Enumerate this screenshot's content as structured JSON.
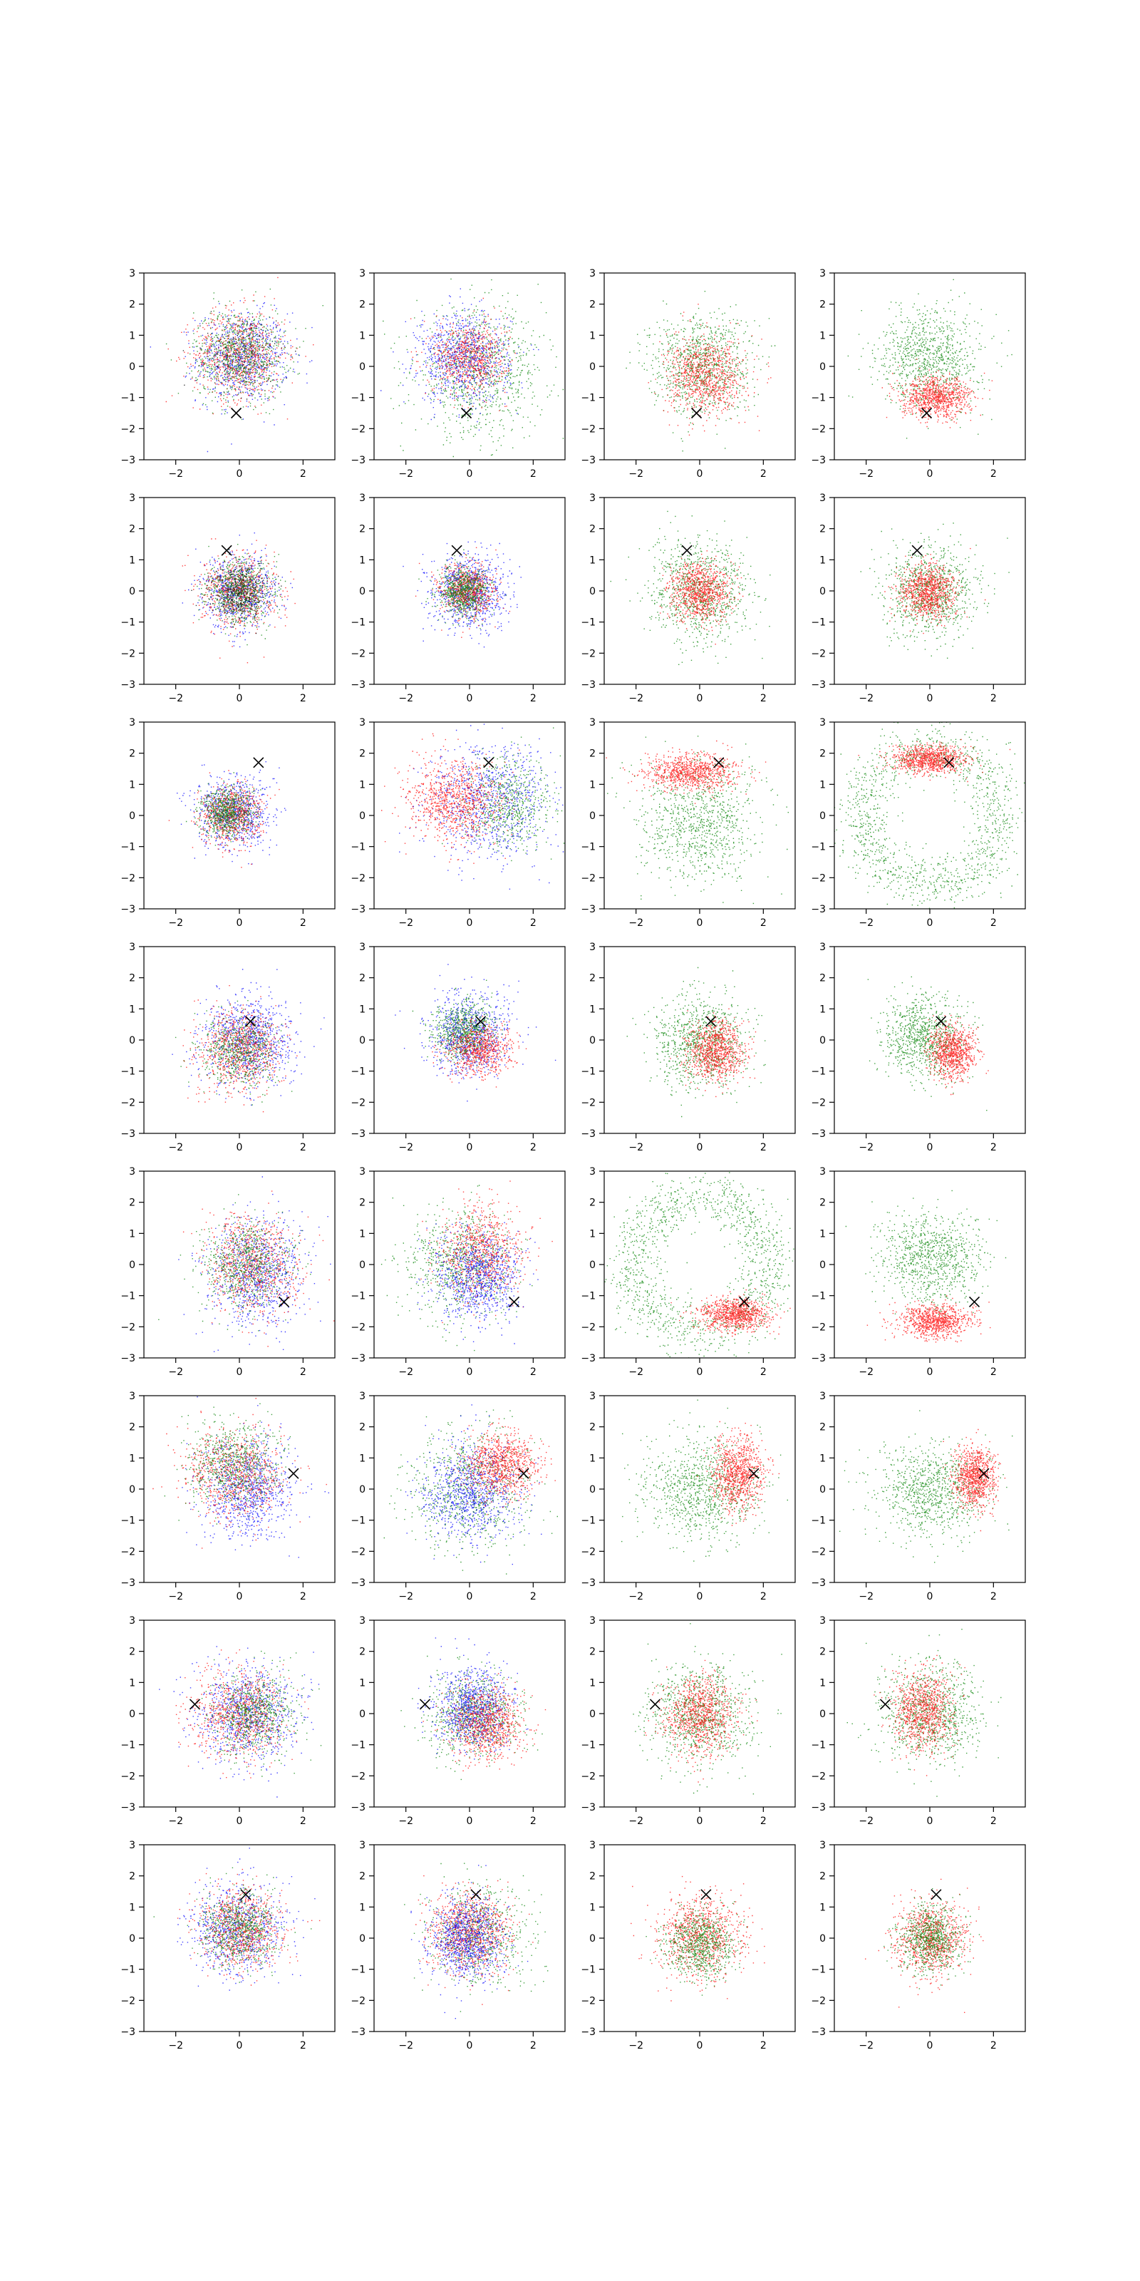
{
  "chart_data": {
    "type": "scatter",
    "rows": 8,
    "cols": 4,
    "xlim": [
      -3,
      3
    ],
    "ylim": [
      -3,
      3
    ],
    "xticks": [
      -2,
      0,
      2
    ],
    "yticks": [
      -3,
      -2,
      -1,
      0,
      1,
      2,
      3
    ],
    "grid": false,
    "legend": "none",
    "colors": {
      "red": "#ff0000",
      "green": "#008000",
      "blue": "#0000ff",
      "marker": "#000000",
      "axes": "#000000"
    },
    "marker_symbol": "x",
    "markers": [
      {
        "x": -0.1,
        "y": -1.5
      },
      {
        "x": -0.4,
        "y": 1.3
      },
      {
        "x": 0.6,
        "y": 1.7
      },
      {
        "x": 0.35,
        "y": 0.6
      },
      {
        "x": 1.4,
        "y": -1.2
      },
      {
        "x": 1.7,
        "y": 0.5
      },
      {
        "x": -1.4,
        "y": 0.3
      },
      {
        "x": 0.2,
        "y": 1.4
      }
    ],
    "panels": [
      {
        "row": 0,
        "col": 0,
        "clouds": [
          {
            "color": "blue",
            "cx": 0.1,
            "cy": 0.3,
            "rx": 1.0,
            "ry": 1.0,
            "n": 800
          },
          {
            "color": "red",
            "cx": 0.0,
            "cy": 0.4,
            "rx": 1.0,
            "ry": 1.0,
            "n": 800
          },
          {
            "color": "green",
            "cx": 0.0,
            "cy": 0.4,
            "rx": 1.0,
            "ry": 1.0,
            "n": 800
          },
          {
            "color": "black",
            "cx": 0.0,
            "cy": 0.4,
            "rx": 0.8,
            "ry": 0.8,
            "n": 120
          }
        ]
      },
      {
        "row": 0,
        "col": 1,
        "clouds": [
          {
            "color": "green",
            "cx": 0.3,
            "cy": -0.2,
            "rx": 1.4,
            "ry": 1.4,
            "n": 900
          },
          {
            "color": "blue",
            "cx": -0.2,
            "cy": 0.3,
            "rx": 1.0,
            "ry": 1.0,
            "n": 900
          },
          {
            "color": "red",
            "cx": 0.0,
            "cy": 0.3,
            "rx": 0.8,
            "ry": 0.8,
            "n": 700
          }
        ]
      },
      {
        "row": 0,
        "col": 2,
        "clouds": [
          {
            "color": "green",
            "cx": 0.0,
            "cy": 0.1,
            "rx": 1.1,
            "ry": 1.1,
            "n": 900
          },
          {
            "color": "red",
            "cx": 0.2,
            "cy": -0.3,
            "rx": 0.85,
            "ry": 0.85,
            "n": 900
          }
        ]
      },
      {
        "row": 0,
        "col": 3,
        "clouds": [
          {
            "color": "green",
            "cx": 0.0,
            "cy": 0.3,
            "rx": 1.1,
            "ry": 1.1,
            "n": 900
          },
          {
            "color": "red",
            "cx": 0.2,
            "cy": -1.0,
            "rx": 0.75,
            "ry": 0.45,
            "n": 900
          }
        ]
      },
      {
        "row": 1,
        "col": 0,
        "clouds": [
          {
            "color": "blue",
            "cx": 0.0,
            "cy": 0.0,
            "rx": 0.8,
            "ry": 0.8,
            "n": 700
          },
          {
            "color": "red",
            "cx": 0.0,
            "cy": 0.0,
            "rx": 0.8,
            "ry": 0.8,
            "n": 700
          },
          {
            "color": "green",
            "cx": 0.0,
            "cy": 0.0,
            "rx": 0.7,
            "ry": 0.7,
            "n": 700
          },
          {
            "color": "black",
            "cx": 0.0,
            "cy": 0.0,
            "rx": 0.6,
            "ry": 0.6,
            "n": 300
          }
        ]
      },
      {
        "row": 1,
        "col": 1,
        "clouds": [
          {
            "color": "blue",
            "cx": 0.0,
            "cy": 0.0,
            "rx": 0.8,
            "ry": 0.8,
            "n": 900
          },
          {
            "color": "red",
            "cx": -0.1,
            "cy": 0.0,
            "rx": 0.6,
            "ry": 0.6,
            "n": 700
          },
          {
            "color": "green",
            "cx": -0.2,
            "cy": 0.0,
            "rx": 0.55,
            "ry": 0.55,
            "n": 700
          }
        ]
      },
      {
        "row": 1,
        "col": 2,
        "clouds": [
          {
            "color": "green",
            "cx": 0.0,
            "cy": 0.0,
            "rx": 1.1,
            "ry": 1.1,
            "n": 900
          },
          {
            "color": "red",
            "cx": 0.0,
            "cy": 0.0,
            "rx": 0.65,
            "ry": 0.65,
            "n": 900
          }
        ]
      },
      {
        "row": 1,
        "col": 3,
        "clouds": [
          {
            "color": "green",
            "cx": 0.0,
            "cy": 0.0,
            "rx": 1.0,
            "ry": 1.0,
            "n": 900
          },
          {
            "color": "red",
            "cx": -0.1,
            "cy": 0.0,
            "rx": 0.6,
            "ry": 0.6,
            "n": 900
          }
        ]
      },
      {
        "row": 2,
        "col": 0,
        "clouds": [
          {
            "color": "blue",
            "cx": -0.2,
            "cy": 0.1,
            "rx": 0.8,
            "ry": 0.8,
            "n": 800
          },
          {
            "color": "red",
            "cx": -0.3,
            "cy": 0.0,
            "rx": 0.65,
            "ry": 0.65,
            "n": 700
          },
          {
            "color": "green",
            "cx": -0.4,
            "cy": 0.1,
            "rx": 0.55,
            "ry": 0.55,
            "n": 700
          }
        ]
      },
      {
        "row": 2,
        "col": 1,
        "clouds": [
          {
            "color": "blue",
            "cx": 0.6,
            "cy": 0.5,
            "rx": 1.3,
            "ry": 1.3,
            "n": 900
          },
          {
            "color": "green",
            "cx": 1.2,
            "cy": 0.4,
            "rx": 1.0,
            "ry": 1.0,
            "n": 600
          },
          {
            "color": "red",
            "cx": -0.5,
            "cy": 0.5,
            "rx": 1.0,
            "ry": 0.9,
            "n": 900
          }
        ]
      },
      {
        "row": 2,
        "col": 2,
        "clouds": [
          {
            "color": "green",
            "cx": 0.0,
            "cy": -0.2,
            "rx": 1.3,
            "ry": 1.3,
            "n": 900
          },
          {
            "color": "red",
            "cx": -0.3,
            "cy": 1.4,
            "rx": 1.0,
            "ry": 0.4,
            "n": 900
          }
        ]
      },
      {
        "row": 2,
        "col": 3,
        "ring": {
          "color": "green",
          "cx": 0.0,
          "cy": 0.0,
          "r": 2.2,
          "w": 0.45,
          "n": 1300
        },
        "clouds": [
          {
            "color": "red",
            "cx": 0.0,
            "cy": 1.8,
            "rx": 0.8,
            "ry": 0.3,
            "n": 900
          }
        ]
      },
      {
        "row": 3,
        "col": 0,
        "clouds": [
          {
            "color": "blue",
            "cx": 0.3,
            "cy": 0.0,
            "rx": 1.0,
            "ry": 1.0,
            "n": 900
          },
          {
            "color": "red",
            "cx": 0.0,
            "cy": -0.3,
            "rx": 0.9,
            "ry": 0.9,
            "n": 800
          },
          {
            "color": "green",
            "cx": 0.0,
            "cy": -0.3,
            "rx": 0.8,
            "ry": 0.8,
            "n": 600
          }
        ]
      },
      {
        "row": 3,
        "col": 1,
        "clouds": [
          {
            "color": "blue",
            "cx": 0.0,
            "cy": 0.2,
            "rx": 0.9,
            "ry": 0.9,
            "n": 900
          },
          {
            "color": "green",
            "cx": -0.2,
            "cy": 0.3,
            "rx": 0.65,
            "ry": 0.65,
            "n": 700
          },
          {
            "color": "red",
            "cx": 0.3,
            "cy": -0.3,
            "rx": 0.7,
            "ry": 0.55,
            "n": 700
          }
        ]
      },
      {
        "row": 3,
        "col": 2,
        "clouds": [
          {
            "color": "green",
            "cx": 0.0,
            "cy": 0.0,
            "rx": 1.0,
            "ry": 1.0,
            "n": 900
          },
          {
            "color": "red",
            "cx": 0.5,
            "cy": -0.3,
            "rx": 0.6,
            "ry": 0.65,
            "n": 900
          }
        ]
      },
      {
        "row": 3,
        "col": 3,
        "clouds": [
          {
            "color": "green",
            "cx": -0.2,
            "cy": 0.1,
            "rx": 0.9,
            "ry": 0.9,
            "n": 900
          },
          {
            "color": "red",
            "cx": 0.7,
            "cy": -0.4,
            "rx": 0.5,
            "ry": 0.55,
            "n": 900
          }
        ]
      },
      {
        "row": 4,
        "col": 0,
        "clouds": [
          {
            "color": "blue",
            "cx": 0.5,
            "cy": -0.3,
            "rx": 1.0,
            "ry": 1.2,
            "n": 900
          },
          {
            "color": "red",
            "cx": 0.4,
            "cy": 0.0,
            "rx": 1.0,
            "ry": 1.1,
            "n": 800
          },
          {
            "color": "green",
            "cx": 0.2,
            "cy": 0.0,
            "rx": 1.0,
            "ry": 1.0,
            "n": 700
          }
        ]
      },
      {
        "row": 4,
        "col": 1,
        "clouds": [
          {
            "color": "green",
            "cx": -0.3,
            "cy": 0.0,
            "rx": 1.2,
            "ry": 1.2,
            "n": 800
          },
          {
            "color": "red",
            "cx": 0.4,
            "cy": 0.4,
            "rx": 0.9,
            "ry": 1.0,
            "n": 800
          },
          {
            "color": "blue",
            "cx": 0.2,
            "cy": -0.4,
            "rx": 0.9,
            "ry": 1.0,
            "n": 900
          }
        ]
      },
      {
        "row": 4,
        "col": 2,
        "ring": {
          "color": "green",
          "cx": 0.0,
          "cy": 0.0,
          "r": 2.2,
          "w": 0.45,
          "n": 1300
        },
        "clouds": [
          {
            "color": "red",
            "cx": 1.1,
            "cy": -1.6,
            "rx": 0.75,
            "ry": 0.35,
            "n": 900
          }
        ]
      },
      {
        "row": 4,
        "col": 3,
        "clouds": [
          {
            "color": "green",
            "cx": 0.0,
            "cy": 0.2,
            "rx": 1.1,
            "ry": 1.0,
            "n": 900
          },
          {
            "color": "red",
            "cx": 0.2,
            "cy": -1.8,
            "rx": 0.8,
            "ry": 0.35,
            "n": 900
          }
        ]
      },
      {
        "row": 5,
        "col": 0,
        "clouds": [
          {
            "color": "blue",
            "cx": 0.2,
            "cy": 0.0,
            "rx": 1.0,
            "ry": 1.1,
            "n": 900
          },
          {
            "color": "red",
            "cx": -0.2,
            "cy": 0.5,
            "rx": 1.1,
            "ry": 1.0,
            "n": 800
          },
          {
            "color": "green",
            "cx": -0.2,
            "cy": 0.8,
            "rx": 1.0,
            "ry": 0.9,
            "n": 700
          }
        ]
      },
      {
        "row": 5,
        "col": 1,
        "clouds": [
          {
            "color": "green",
            "cx": 0.0,
            "cy": 0.0,
            "rx": 1.3,
            "ry": 1.3,
            "n": 800
          },
          {
            "color": "blue",
            "cx": 0.0,
            "cy": -0.1,
            "rx": 1.0,
            "ry": 1.1,
            "n": 900
          },
          {
            "color": "red",
            "cx": 1.0,
            "cy": 0.8,
            "rx": 0.8,
            "ry": 0.7,
            "n": 900
          }
        ]
      },
      {
        "row": 5,
        "col": 2,
        "clouds": [
          {
            "color": "green",
            "cx": 0.0,
            "cy": 0.0,
            "rx": 1.2,
            "ry": 1.2,
            "n": 900
          },
          {
            "color": "red",
            "cx": 1.2,
            "cy": 0.5,
            "rx": 0.55,
            "ry": 0.8,
            "n": 900
          }
        ]
      },
      {
        "row": 5,
        "col": 3,
        "clouds": [
          {
            "color": "green",
            "cx": 0.0,
            "cy": 0.0,
            "rx": 1.2,
            "ry": 1.0,
            "n": 900
          },
          {
            "color": "red",
            "cx": 1.4,
            "cy": 0.4,
            "rx": 0.45,
            "ry": 0.7,
            "n": 900
          }
        ]
      },
      {
        "row": 6,
        "col": 0,
        "clouds": [
          {
            "color": "blue",
            "cx": 0.2,
            "cy": 0.0,
            "rx": 1.1,
            "ry": 1.1,
            "n": 900
          },
          {
            "color": "red",
            "cx": 0.0,
            "cy": 0.0,
            "rx": 1.0,
            "ry": 1.0,
            "n": 800
          },
          {
            "color": "green",
            "cx": 0.5,
            "cy": 0.0,
            "rx": 0.9,
            "ry": 0.9,
            "n": 700
          }
        ]
      },
      {
        "row": 6,
        "col": 1,
        "clouds": [
          {
            "color": "green",
            "cx": 0.1,
            "cy": 0.0,
            "rx": 1.0,
            "ry": 1.0,
            "n": 800
          },
          {
            "color": "blue",
            "cx": 0.1,
            "cy": 0.2,
            "rx": 0.8,
            "ry": 0.9,
            "n": 900
          },
          {
            "color": "red",
            "cx": 0.5,
            "cy": -0.3,
            "rx": 0.8,
            "ry": 0.8,
            "n": 800
          }
        ]
      },
      {
        "row": 6,
        "col": 2,
        "clouds": [
          {
            "color": "green",
            "cx": 0.0,
            "cy": 0.0,
            "rx": 1.1,
            "ry": 1.1,
            "n": 900
          },
          {
            "color": "red",
            "cx": 0.0,
            "cy": 0.0,
            "rx": 0.75,
            "ry": 0.9,
            "n": 900
          }
        ]
      },
      {
        "row": 6,
        "col": 3,
        "clouds": [
          {
            "color": "green",
            "cx": 0.0,
            "cy": 0.0,
            "rx": 1.1,
            "ry": 1.1,
            "n": 900
          },
          {
            "color": "red",
            "cx": -0.2,
            "cy": 0.1,
            "rx": 0.65,
            "ry": 0.85,
            "n": 900
          }
        ]
      },
      {
        "row": 7,
        "col": 0,
        "clouds": [
          {
            "color": "blue",
            "cx": -0.1,
            "cy": 0.3,
            "rx": 1.0,
            "ry": 1.0,
            "n": 800
          },
          {
            "color": "red",
            "cx": 0.0,
            "cy": 0.3,
            "rx": 0.9,
            "ry": 0.9,
            "n": 800
          },
          {
            "color": "green",
            "cx": 0.0,
            "cy": 0.3,
            "rx": 0.8,
            "ry": 0.8,
            "n": 700
          }
        ]
      },
      {
        "row": 7,
        "col": 1,
        "clouds": [
          {
            "color": "green",
            "cx": 0.3,
            "cy": 0.1,
            "rx": 1.1,
            "ry": 1.1,
            "n": 700
          },
          {
            "color": "red",
            "cx": 0.0,
            "cy": 0.2,
            "rx": 0.9,
            "ry": 0.9,
            "n": 900
          },
          {
            "color": "blue",
            "cx": -0.1,
            "cy": 0.0,
            "rx": 0.8,
            "ry": 0.9,
            "n": 900
          }
        ]
      },
      {
        "row": 7,
        "col": 2,
        "clouds": [
          {
            "color": "red",
            "cx": 0.0,
            "cy": 0.1,
            "rx": 0.9,
            "ry": 0.9,
            "n": 900
          },
          {
            "color": "green",
            "cx": 0.0,
            "cy": -0.2,
            "rx": 0.75,
            "ry": 0.75,
            "n": 800
          }
        ]
      },
      {
        "row": 7,
        "col": 3,
        "clouds": [
          {
            "color": "red",
            "cx": 0.0,
            "cy": 0.0,
            "rx": 0.75,
            "ry": 0.8,
            "n": 900
          },
          {
            "color": "green",
            "cx": 0.0,
            "cy": 0.0,
            "rx": 0.65,
            "ry": 0.7,
            "n": 800
          }
        ]
      }
    ]
  }
}
